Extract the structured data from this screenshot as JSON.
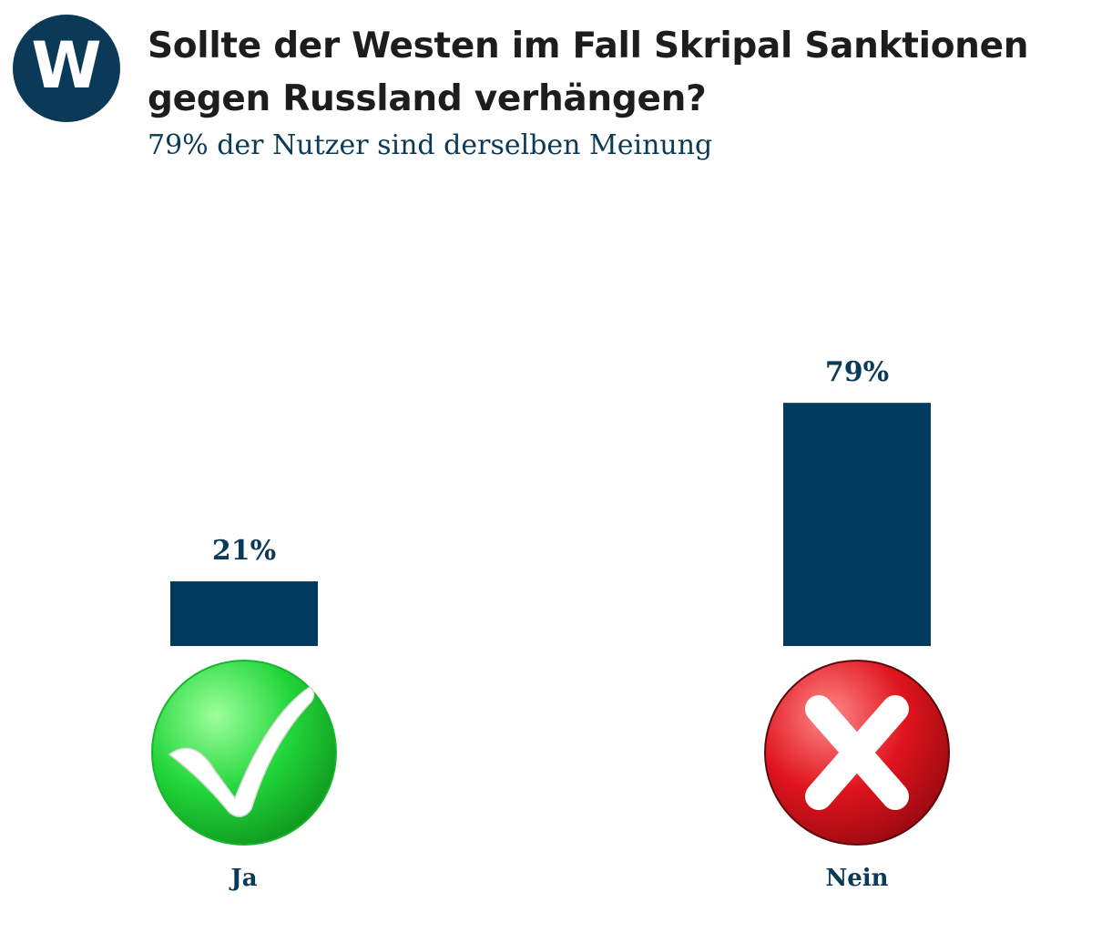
{
  "header": {
    "logo_letter": "W",
    "title": "Sollte der Westen im Fall Skripal Sanktionen gegen Russland verhängen?",
    "subtitle": "79% der Nutzer sind derselben Meinung"
  },
  "colors": {
    "bar": "#003a5c",
    "brand": "#0a3a57",
    "yes_icon": "#22d63a",
    "no_icon": "#e0141e"
  },
  "chart_data": {
    "type": "bar",
    "title": "Sollte der Westen im Fall Skripal Sanktionen gegen Russland verhängen?",
    "categories": [
      "Ja",
      "Nein"
    ],
    "values": [
      21,
      79
    ],
    "value_labels": [
      "21%",
      "79%"
    ],
    "icons": [
      "check-icon",
      "cross-icon"
    ],
    "ylim": [
      0,
      100
    ],
    "grid": false
  }
}
